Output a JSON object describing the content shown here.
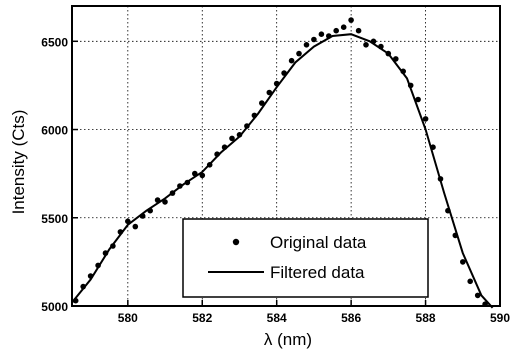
{
  "chart_data": {
    "type": "scatter",
    "title": "",
    "xlabel": "λ (nm)",
    "ylabel": "Intensity (Cts)",
    "xlim": [
      578.5,
      590
    ],
    "ylim": [
      5000,
      6700
    ],
    "x_ticks": [
      580,
      582,
      584,
      586,
      588,
      590
    ],
    "x_tick_labels": [
      "580",
      "582",
      "584",
      "586",
      "588",
      "590"
    ],
    "y_ticks": [
      5000,
      5500,
      6000,
      6500
    ],
    "y_tick_labels": [
      "5000",
      "5500",
      "6000",
      "6500"
    ],
    "grid": true,
    "legend": {
      "placement": "bottom-center",
      "entries": [
        {
          "label": "Original data",
          "marker": "dot"
        },
        {
          "label": "Filtered data",
          "marker": "line"
        }
      ]
    },
    "series": [
      {
        "name": "Original data",
        "kind": "scatter",
        "x": [
          578.6,
          578.8,
          579.0,
          579.2,
          579.4,
          579.6,
          579.8,
          580.0,
          580.2,
          580.4,
          580.6,
          580.8,
          581.0,
          581.2,
          581.4,
          581.6,
          581.8,
          582.0,
          582.2,
          582.4,
          582.6,
          582.8,
          583.0,
          583.2,
          583.4,
          583.6,
          583.8,
          584.0,
          584.2,
          584.4,
          584.6,
          584.8,
          585.0,
          585.2,
          585.4,
          585.6,
          585.8,
          586.0,
          586.2,
          586.4,
          586.6,
          586.8,
          587.0,
          587.2,
          587.4,
          587.6,
          587.8,
          588.0,
          588.2,
          588.4,
          588.6,
          588.8,
          589.0,
          589.2,
          589.4,
          589.6
        ],
        "y": [
          5030,
          5110,
          5170,
          5230,
          5300,
          5340,
          5420,
          5480,
          5450,
          5510,
          5540,
          5600,
          5590,
          5640,
          5680,
          5700,
          5750,
          5740,
          5800,
          5860,
          5900,
          5950,
          5970,
          6020,
          6080,
          6150,
          6210,
          6260,
          6320,
          6390,
          6430,
          6480,
          6510,
          6540,
          6530,
          6560,
          6580,
          6620,
          6560,
          6480,
          6500,
          6470,
          6430,
          6400,
          6330,
          6250,
          6170,
          6060,
          5900,
          5720,
          5540,
          5400,
          5250,
          5140,
          5060,
          5010
        ]
      },
      {
        "name": "Filtered data",
        "kind": "line",
        "x": [
          578.5,
          579.0,
          579.5,
          580.0,
          580.5,
          581.0,
          581.5,
          582.0,
          582.5,
          583.0,
          583.5,
          584.0,
          584.5,
          585.0,
          585.5,
          586.0,
          586.5,
          587.0,
          587.5,
          588.0,
          588.5,
          589.0,
          589.5,
          589.8
        ],
        "y": [
          5020,
          5150,
          5320,
          5460,
          5540,
          5610,
          5690,
          5760,
          5870,
          5960,
          6090,
          6240,
          6380,
          6470,
          6530,
          6540,
          6500,
          6430,
          6290,
          6000,
          5640,
          5300,
          5060,
          4990
        ]
      }
    ]
  }
}
